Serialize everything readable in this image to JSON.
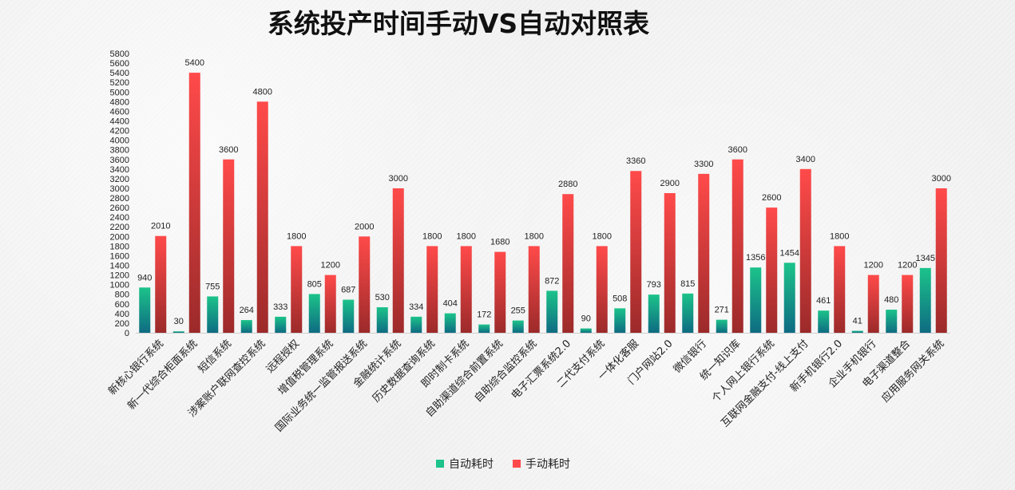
{
  "chart_data": {
    "type": "bar",
    "title": "系统投产时间手动VS自动对照表",
    "xlabel": "",
    "ylabel": "",
    "ylim": [
      0,
      5800
    ],
    "ytick_step": 200,
    "grid": false,
    "legend_position": "bottom",
    "categories": [
      "新核心银行系统",
      "新一代综合柜面系统",
      "短信系统",
      "涉案账户联网查控系统",
      "远程授权",
      "增值税管理系统",
      "国际业务统一监管报送系统",
      "金融统计系统",
      "历史数据查询系统",
      "即时制卡系统",
      "自助渠道综合前置系统",
      "自助综合监控系统",
      "电子汇票系统2.0",
      "二代支付系统",
      "一体化客服",
      "门户网站2.0",
      "微信银行",
      "统一知识库",
      "个人网上银行系统",
      "互联网金融支付-线上支付",
      "新手机银行2.0",
      "企业手机银行",
      "电子渠道整合",
      "应用服务网关系统"
    ],
    "series": [
      {
        "name": "自动耗时",
        "color": "#1cc38a",
        "color_dark": "#0e6b82",
        "values": [
          940,
          30,
          755,
          264,
          333,
          805,
          687,
          530,
          334,
          404,
          172,
          255,
          872,
          90,
          508,
          793,
          815,
          271,
          1356,
          1454,
          461,
          41,
          480,
          1345
        ]
      },
      {
        "name": "手动耗时",
        "color": "#ff4a4a",
        "color_dark": "#9c2a2a",
        "values": [
          2010,
          5400,
          3600,
          4800,
          1800,
          1200,
          2000,
          3000,
          1800,
          1800,
          1680,
          1800,
          2880,
          1800,
          3360,
          2900,
          3300,
          3600,
          2600,
          3400,
          1800,
          1200,
          1200,
          3000
        ]
      }
    ]
  }
}
